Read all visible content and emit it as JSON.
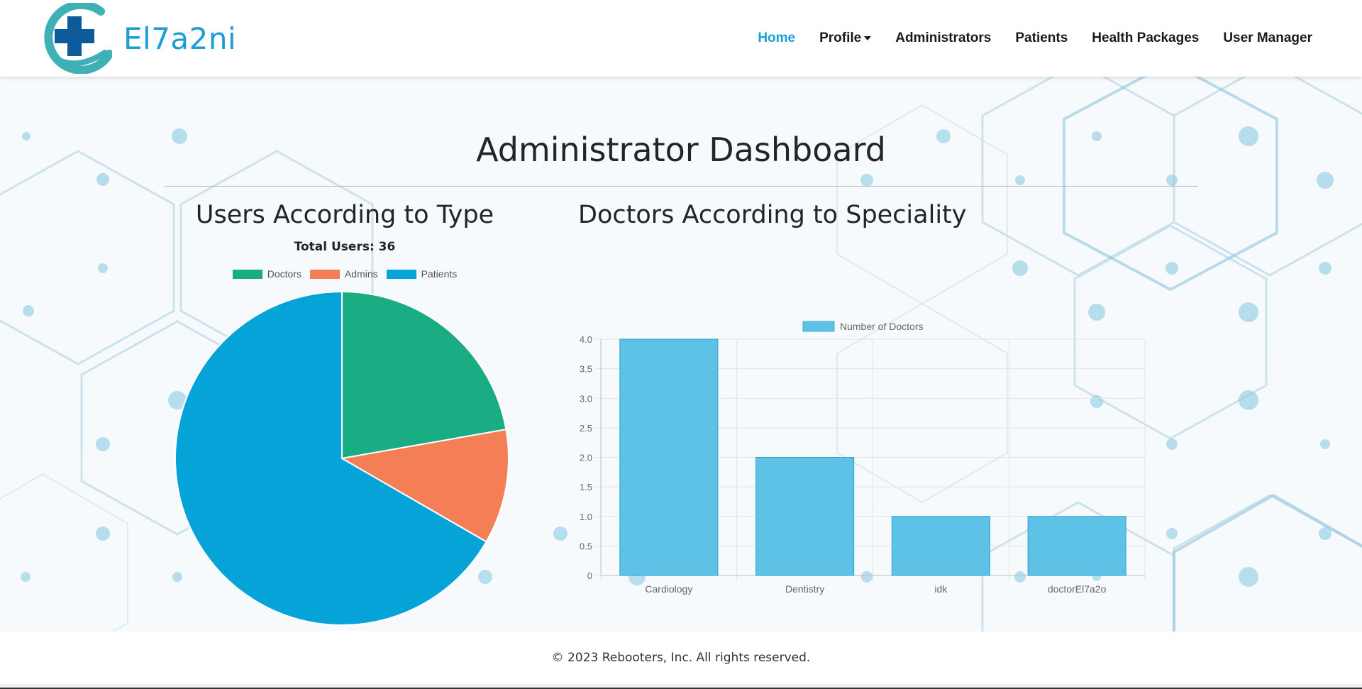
{
  "brand": {
    "name": "El7a2ni",
    "logo_icon": "medical-cross-hand-icon",
    "accent": "#1a9ed6"
  },
  "nav": {
    "items": [
      {
        "label": "Home",
        "active": true
      },
      {
        "label": "Profile",
        "dropdown": true
      },
      {
        "label": "Administrators"
      },
      {
        "label": "Patients"
      },
      {
        "label": "Health Packages"
      },
      {
        "label": "User Manager"
      }
    ]
  },
  "page": {
    "title": "Administrator Dashboard"
  },
  "pie": {
    "heading": "Users According to Type",
    "total_text": "Total Users: 36"
  },
  "bar": {
    "heading": "Doctors According to Speciality"
  },
  "chart_data": [
    {
      "type": "pie",
      "title": "Users According to Type",
      "subtitle": "Total Users: 36",
      "categories": [
        "Doctors",
        "Admins",
        "Patients"
      ],
      "values": [
        8,
        4,
        24
      ],
      "colors": [
        "#1aad84",
        "#f47f57",
        "#06a3d9"
      ],
      "legend": "top"
    },
    {
      "type": "bar",
      "title": "Doctors According to Speciality",
      "categories": [
        "Cardiology",
        "Dentistry",
        "idk",
        "doctorEl7a2o"
      ],
      "series": [
        {
          "name": "Number of Doctors",
          "values": [
            4,
            2,
            1,
            1
          ],
          "color": "#5ec2e6"
        }
      ],
      "ylim": [
        0,
        4
      ],
      "yticks": [
        "0",
        "0.5",
        "1.0",
        "1.5",
        "2.0",
        "2.5",
        "3.0",
        "3.5",
        "4.0"
      ],
      "grid": true,
      "legend": "top"
    }
  ],
  "footer": {
    "text": "© 2023 Rebooters, Inc. All rights reserved."
  }
}
